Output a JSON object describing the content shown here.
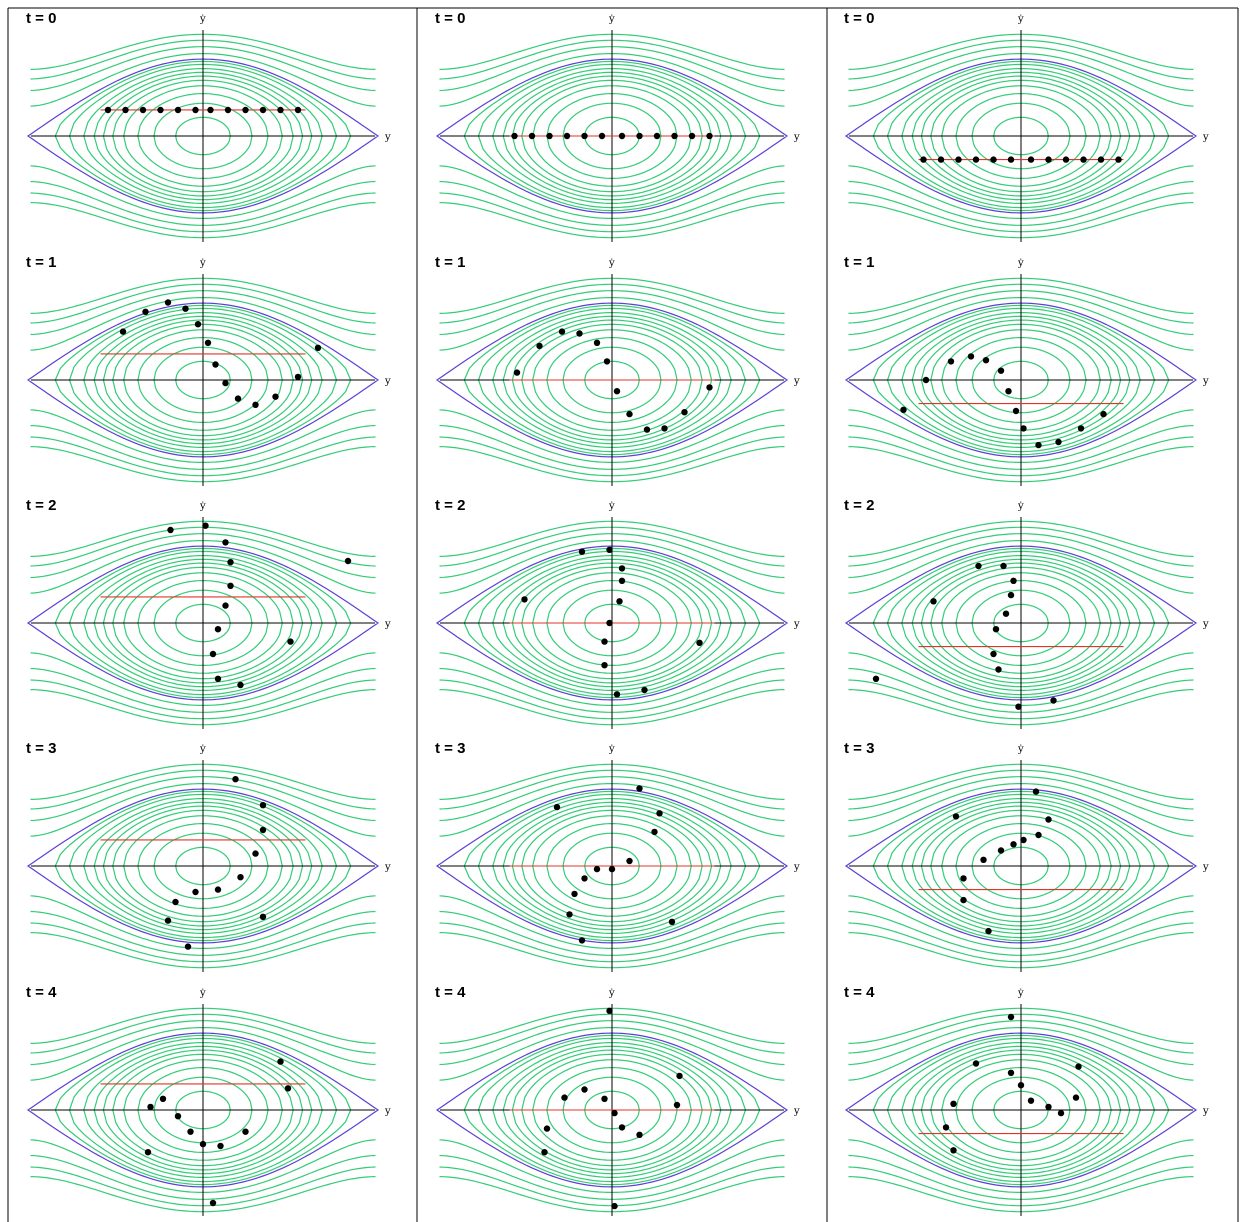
{
  "axes": {
    "x_label": "y",
    "y_label": "ẏ"
  },
  "colors": {
    "orbit": "#33cc77",
    "separatrix": "#5b3fd6",
    "initial_line": "#e0342b",
    "particle": "#000000",
    "axis": "#000000"
  },
  "columns": [
    {
      "ic_offset": 0.42,
      "panels": [
        {
          "label": "t = 0",
          "points": [
            [
              -1.9,
              0.42
            ],
            [
              -1.55,
              0.42
            ],
            [
              -1.2,
              0.42
            ],
            [
              -0.85,
              0.42
            ],
            [
              -0.5,
              0.42
            ],
            [
              -0.15,
              0.42
            ],
            [
              0.15,
              0.42
            ],
            [
              0.5,
              0.42
            ],
            [
              0.85,
              0.42
            ],
            [
              1.2,
              0.42
            ],
            [
              1.55,
              0.42
            ],
            [
              1.9,
              0.42
            ]
          ]
        },
        {
          "label": "t = 1",
          "points": [
            [
              -1.6,
              0.78
            ],
            [
              -1.15,
              1.1
            ],
            [
              -0.7,
              1.25
            ],
            [
              -0.35,
              1.15
            ],
            [
              -0.1,
              0.9
            ],
            [
              0.1,
              0.6
            ],
            [
              0.25,
              0.25
            ],
            [
              0.45,
              -0.05
            ],
            [
              0.7,
              -0.3
            ],
            [
              1.05,
              -0.4
            ],
            [
              1.45,
              -0.27
            ],
            [
              1.9,
              0.05
            ],
            [
              2.3,
              0.52
            ]
          ]
        },
        {
          "label": "t = 2",
          "points": [
            [
              -0.65,
              1.5
            ],
            [
              0.05,
              1.57
            ],
            [
              0.45,
              1.3
            ],
            [
              0.55,
              0.98
            ],
            [
              0.55,
              0.6
            ],
            [
              0.45,
              0.28
            ],
            [
              0.3,
              -0.1
            ],
            [
              0.2,
              -0.5
            ],
            [
              0.3,
              -0.9
            ],
            [
              0.75,
              -1.0
            ],
            [
              1.75,
              -0.3
            ],
            [
              2.9,
              1.0
            ]
          ]
        },
        {
          "label": "t = 3",
          "points": [
            [
              0.65,
              1.4
            ],
            [
              1.2,
              0.98
            ],
            [
              1.2,
              0.58
            ],
            [
              1.05,
              0.2
            ],
            [
              0.75,
              -0.18
            ],
            [
              0.3,
              -0.38
            ],
            [
              -0.15,
              -0.42
            ],
            [
              -0.55,
              -0.58
            ],
            [
              -0.7,
              -0.88
            ],
            [
              -0.3,
              -1.3
            ],
            [
              1.2,
              -0.82
            ]
          ]
        },
        {
          "label": "t = 4",
          "points": [
            [
              1.55,
              0.78
            ],
            [
              1.7,
              0.35
            ],
            [
              0.85,
              -0.35
            ],
            [
              0.35,
              -0.58
            ],
            [
              0.0,
              -0.55
            ],
            [
              -0.25,
              -0.35
            ],
            [
              -0.5,
              -0.1
            ],
            [
              -0.8,
              0.18
            ],
            [
              -1.05,
              0.05
            ],
            [
              -1.1,
              -0.68
            ],
            [
              0.2,
              -1.5
            ]
          ]
        }
      ]
    },
    {
      "ic_offset": 0.0,
      "panels": [
        {
          "label": "t = 0",
          "points": [
            [
              -1.95,
              0.0
            ],
            [
              -1.6,
              0.0
            ],
            [
              -1.25,
              0.0
            ],
            [
              -0.9,
              0.0
            ],
            [
              -0.55,
              0.0
            ],
            [
              -0.2,
              0.0
            ],
            [
              0.2,
              0.0
            ],
            [
              0.55,
              0.0
            ],
            [
              0.9,
              0.0
            ],
            [
              1.25,
              0.0
            ],
            [
              1.6,
              0.0
            ],
            [
              1.95,
              0.0
            ]
          ]
        },
        {
          "label": "t = 1",
          "points": [
            [
              -1.9,
              0.12
            ],
            [
              -1.45,
              0.55
            ],
            [
              -1.0,
              0.78
            ],
            [
              -0.65,
              0.75
            ],
            [
              -0.3,
              0.6
            ],
            [
              -0.1,
              0.3
            ],
            [
              0.1,
              -0.18
            ],
            [
              0.35,
              -0.55
            ],
            [
              0.7,
              -0.8
            ],
            [
              1.05,
              -0.78
            ],
            [
              1.45,
              -0.52
            ],
            [
              1.95,
              -0.12
            ]
          ]
        },
        {
          "label": "t = 2",
          "points": [
            [
              -1.75,
              0.38
            ],
            [
              -0.6,
              1.15
            ],
            [
              -0.05,
              1.18
            ],
            [
              0.2,
              0.88
            ],
            [
              0.2,
              0.68
            ],
            [
              0.15,
              0.35
            ],
            [
              -0.05,
              0.0
            ],
            [
              -0.15,
              -0.3
            ],
            [
              -0.15,
              -0.68
            ],
            [
              0.1,
              -1.15
            ],
            [
              0.65,
              -1.08
            ],
            [
              1.75,
              -0.32
            ]
          ]
        },
        {
          "label": "t = 3",
          "points": [
            [
              -1.1,
              0.95
            ],
            [
              0.55,
              1.25
            ],
            [
              0.95,
              0.85
            ],
            [
              0.85,
              0.55
            ],
            [
              0.35,
              0.08
            ],
            [
              0.0,
              -0.05
            ],
            [
              -0.3,
              -0.05
            ],
            [
              -0.55,
              -0.2
            ],
            [
              -0.75,
              -0.45
            ],
            [
              -0.85,
              -0.78
            ],
            [
              -0.6,
              -1.2
            ],
            [
              1.2,
              -0.9
            ]
          ]
        },
        {
          "label": "t = 4",
          "points": [
            [
              -0.05,
              1.6
            ],
            [
              1.35,
              0.55
            ],
            [
              1.3,
              0.08
            ],
            [
              0.55,
              -0.4
            ],
            [
              0.2,
              -0.28
            ],
            [
              0.05,
              -0.05
            ],
            [
              -0.15,
              0.18
            ],
            [
              -0.55,
              0.33
            ],
            [
              -0.95,
              0.2
            ],
            [
              -1.3,
              -0.3
            ],
            [
              -1.35,
              -0.68
            ],
            [
              0.05,
              -1.55
            ]
          ]
        }
      ]
    },
    {
      "ic_offset": -0.38,
      "panels": [
        {
          "label": "t = 0",
          "points": [
            [
              -1.95,
              -0.38
            ],
            [
              -1.6,
              -0.38
            ],
            [
              -1.25,
              -0.38
            ],
            [
              -0.9,
              -0.38
            ],
            [
              -0.55,
              -0.38
            ],
            [
              -0.2,
              -0.38
            ],
            [
              0.2,
              -0.38
            ],
            [
              0.55,
              -0.38
            ],
            [
              0.9,
              -0.38
            ],
            [
              1.25,
              -0.38
            ],
            [
              1.6,
              -0.38
            ],
            [
              1.95,
              -0.38
            ]
          ]
        },
        {
          "label": "t = 1",
          "points": [
            [
              -2.35,
              -0.48
            ],
            [
              -1.9,
              0.0
            ],
            [
              -1.4,
              0.3
            ],
            [
              -1.0,
              0.38
            ],
            [
              -0.7,
              0.32
            ],
            [
              -0.4,
              0.15
            ],
            [
              -0.25,
              -0.18
            ],
            [
              -0.1,
              -0.5
            ],
            [
              0.05,
              -0.78
            ],
            [
              0.35,
              -1.05
            ],
            [
              0.75,
              -1.0
            ],
            [
              1.2,
              -0.78
            ],
            [
              1.65,
              -0.55
            ]
          ]
        },
        {
          "label": "t = 2",
          "points": [
            [
              -2.9,
              -0.9
            ],
            [
              -1.75,
              0.35
            ],
            [
              -0.85,
              0.92
            ],
            [
              -0.35,
              0.92
            ],
            [
              -0.15,
              0.68
            ],
            [
              -0.2,
              0.45
            ],
            [
              -0.3,
              0.15
            ],
            [
              -0.5,
              -0.1
            ],
            [
              -0.55,
              -0.5
            ],
            [
              -0.45,
              -0.75
            ],
            [
              -0.05,
              -1.35
            ],
            [
              0.65,
              -1.25
            ]
          ]
        },
        {
          "label": "t = 3",
          "points": [
            [
              -1.3,
              0.8
            ],
            [
              -1.15,
              -0.2
            ],
            [
              -0.75,
              0.1
            ],
            [
              -0.4,
              0.25
            ],
            [
              -0.15,
              0.35
            ],
            [
              0.05,
              0.42
            ],
            [
              0.35,
              0.5
            ],
            [
              0.55,
              0.75
            ],
            [
              0.3,
              1.2
            ],
            [
              -1.15,
              -0.55
            ],
            [
              -0.65,
              -1.05
            ]
          ]
        },
        {
          "label": "t = 4",
          "points": [
            [
              -0.2,
              1.5
            ],
            [
              -0.9,
              0.75
            ],
            [
              -1.35,
              0.1
            ],
            [
              -0.2,
              0.6
            ],
            [
              0.0,
              0.4
            ],
            [
              0.2,
              0.15
            ],
            [
              0.55,
              0.05
            ],
            [
              0.8,
              -0.05
            ],
            [
              1.1,
              0.2
            ],
            [
              1.15,
              0.7
            ],
            [
              -1.5,
              -0.28
            ],
            [
              -1.35,
              -0.65
            ]
          ]
        }
      ]
    }
  ]
}
